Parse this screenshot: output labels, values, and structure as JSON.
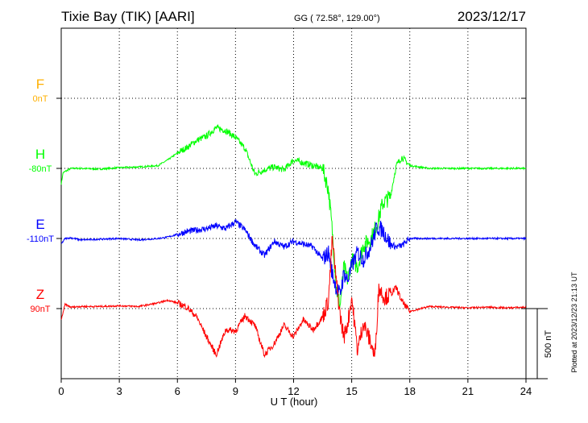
{
  "chart_data": {
    "type": "line",
    "title": "Tixie Bay (TIK)  [AARI]",
    "coords": "GG ( 72.58°, 129.00°)",
    "date": "2023/12/17",
    "plotted_note": "Plotted at 2023/12/23 21:13 UT",
    "xlabel": "U T (hour)",
    "xlim": [
      0,
      24
    ],
    "x_ticks": [
      "0",
      "3",
      "6",
      "9",
      "12",
      "15",
      "18",
      "21",
      "24"
    ],
    "scale_bar_label": "500 nT",
    "scale_bar_nT": 500,
    "grid": true,
    "series": [
      {
        "name": "F",
        "baseline_label": "0nT",
        "color": "#ffb000",
        "x": [],
        "values": []
      },
      {
        "name": "H",
        "baseline_label": "-80nT",
        "color": "#00ff00",
        "x": [
          0,
          0.1,
          0.5,
          1,
          2,
          3,
          4,
          5,
          5.5,
          6,
          6.5,
          7,
          7.5,
          8,
          8.5,
          9,
          9.5,
          10,
          10.5,
          11,
          11.5,
          12,
          12.5,
          13,
          13.5,
          13.8,
          14,
          14.2,
          14.4,
          14.6,
          14.8,
          15,
          15.3,
          15.6,
          16,
          16.3,
          16.6,
          17,
          17.3,
          17.6,
          18,
          19,
          20,
          21,
          22,
          23,
          24
        ],
        "values": [
          -110,
          -30,
          0,
          0,
          -5,
          5,
          10,
          20,
          60,
          110,
          150,
          200,
          230,
          290,
          270,
          220,
          140,
          -40,
          -10,
          10,
          -10,
          60,
          40,
          20,
          0,
          -150,
          -450,
          -850,
          -980,
          -700,
          -800,
          -650,
          -700,
          -550,
          -500,
          -400,
          -250,
          -200,
          20,
          80,
          20,
          0,
          0,
          0,
          0,
          0,
          0
        ]
      },
      {
        "name": "E",
        "baseline_label": "-110nT",
        "color": "#0000ff",
        "x": [
          0,
          0.2,
          0.5,
          1,
          2,
          3,
          4,
          5,
          5.5,
          6,
          6.5,
          7,
          7.5,
          8,
          8.5,
          9,
          9.5,
          10,
          10.5,
          11,
          11.5,
          12,
          12.5,
          13,
          13.5,
          13.8,
          14,
          14.2,
          14.4,
          14.6,
          14.8,
          15,
          15.3,
          15.6,
          16,
          16.3,
          16.6,
          17,
          17.3,
          17.6,
          18,
          19,
          20,
          21,
          22,
          23,
          24
        ],
        "values": [
          -40,
          0,
          5,
          -10,
          -5,
          0,
          -10,
          0,
          10,
          30,
          50,
          60,
          70,
          90,
          70,
          120,
          60,
          -50,
          -120,
          -20,
          -60,
          -20,
          -40,
          -60,
          -150,
          -100,
          -250,
          -350,
          -400,
          -250,
          -300,
          -200,
          -100,
          -150,
          -50,
          80,
          60,
          -40,
          -60,
          -50,
          0,
          0,
          0,
          0,
          0,
          0,
          0
        ]
      },
      {
        "name": "Z",
        "baseline_label": "90nT",
        "color": "#ff0000",
        "x": [
          0,
          0.2,
          0.5,
          1,
          2,
          3,
          4,
          5,
          5.5,
          6,
          6.5,
          7,
          7.5,
          8,
          8.5,
          9,
          9.5,
          10,
          10.5,
          11,
          11.5,
          12,
          12.5,
          13,
          13.5,
          13.8,
          14,
          14.2,
          14.4,
          14.6,
          14.8,
          15,
          15.3,
          15.6,
          16,
          16.2,
          16.4,
          16.7,
          17,
          17.3,
          17.6,
          18,
          19,
          20,
          21,
          22,
          23,
          24
        ],
        "values": [
          -80,
          30,
          10,
          15,
          15,
          20,
          15,
          40,
          60,
          40,
          10,
          -60,
          -200,
          -330,
          -150,
          -160,
          -50,
          -120,
          -330,
          -250,
          -120,
          -200,
          -80,
          -150,
          -60,
          60,
          500,
          200,
          -50,
          -200,
          -100,
          80,
          -300,
          -100,
          -250,
          -350,
          150,
          80,
          100,
          150,
          50,
          -20,
          15,
          10,
          5,
          10,
          5,
          10
        ]
      }
    ]
  }
}
